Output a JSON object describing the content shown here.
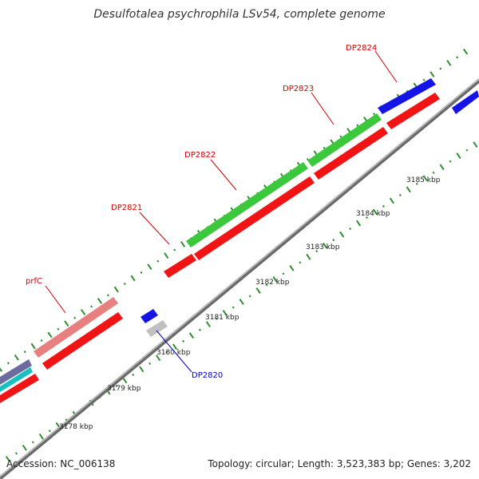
{
  "title": "Desulfotalea psychrophila LSv54, complete genome",
  "footer": {
    "accession_label": "Accession:",
    "accession": "NC_006138",
    "topology_label": "Topology:",
    "topology": "circular",
    "length_label": "Length:",
    "length": "3,523,383 bp",
    "genes_label": "Genes:",
    "genes": "3,202"
  },
  "colors": {
    "green": "#3cc83c",
    "red": "#f01414",
    "pink": "#e88080",
    "blue": "#1414e6",
    "gray": "#c0c0c0",
    "backbone": "#808080",
    "tick": "#2f8f2f",
    "label_red": "#d20000",
    "label_blue": "#0000cc"
  },
  "scale_labels": [
    "3178 kbp",
    "3179 kbp",
    "3180 kbp",
    "3181 kbp",
    "3182 kbp",
    "3183 kbp",
    "3184 kbp",
    "3185 kbp"
  ],
  "gene_labels": [
    {
      "text": "prfC",
      "color": "red"
    },
    {
      "text": "DP2821",
      "color": "red"
    },
    {
      "text": "DP2822",
      "color": "red"
    },
    {
      "text": "DP2823",
      "color": "red"
    },
    {
      "text": "DP2824",
      "color": "red"
    },
    {
      "text": "DP2820",
      "color": "blue"
    }
  ]
}
